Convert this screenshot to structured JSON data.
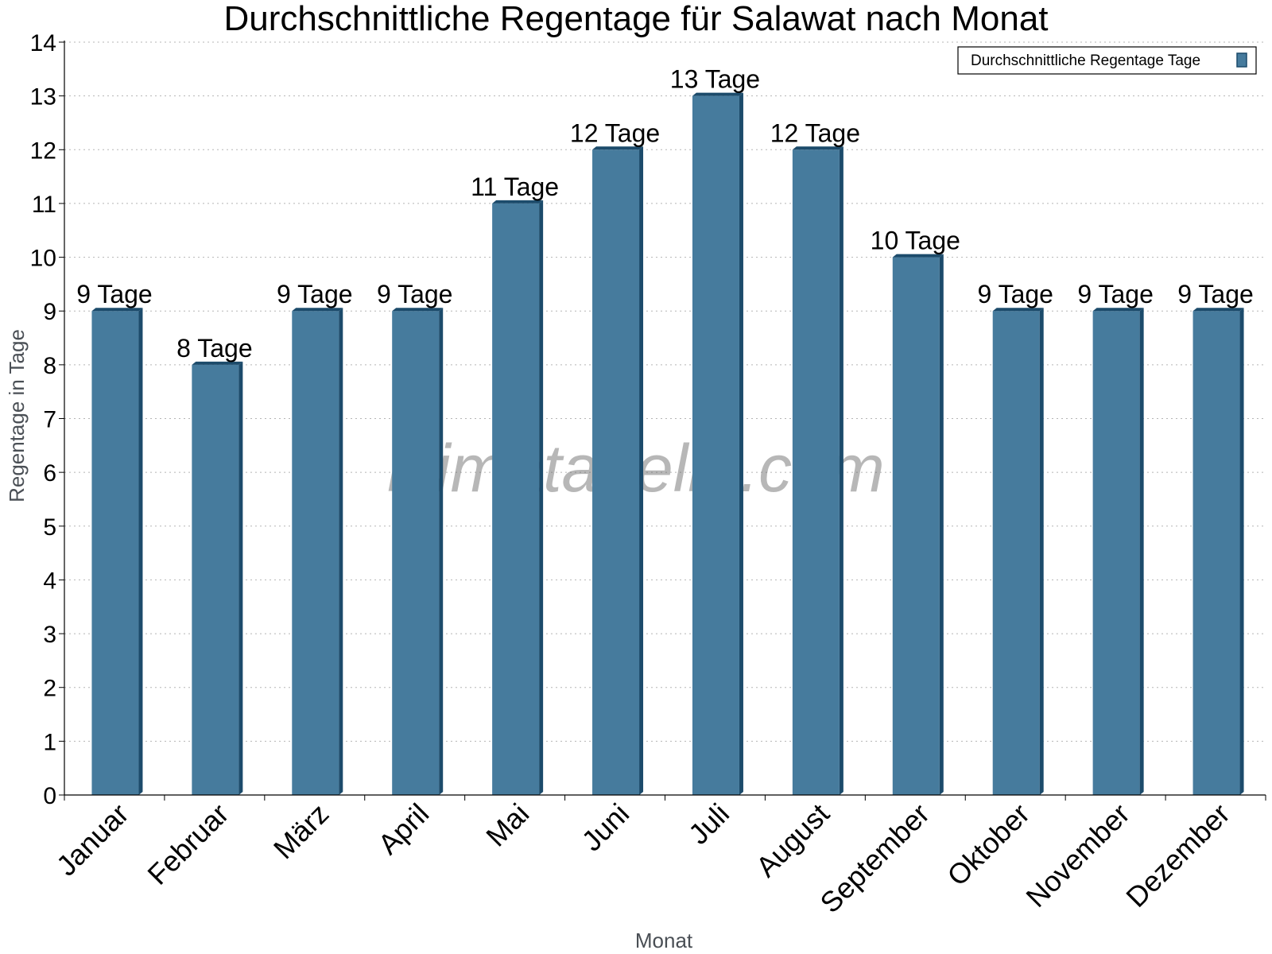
{
  "chart_data": {
    "type": "bar",
    "title": "Durchschnittliche Regentage für Salawat nach Monat",
    "xlabel": "Monat",
    "ylabel": "Regentage in Tage",
    "categories": [
      "Januar",
      "Februar",
      "März",
      "April",
      "Mai",
      "Juni",
      "Juli",
      "August",
      "September",
      "Oktober",
      "November",
      "Dezember"
    ],
    "series": [
      {
        "name": "Durchschnittliche Regentage Tage",
        "values": [
          9,
          8,
          9,
          9,
          11,
          12,
          13,
          12,
          10,
          9,
          9,
          9
        ],
        "labels": [
          "9 Tage",
          "8 Tage",
          "9 Tage",
          "9 Tage",
          "11 Tage",
          "12 Tage",
          "13 Tage",
          "12 Tage",
          "10 Tage",
          "9 Tage",
          "9 Tage",
          "9 Tage"
        ],
        "color": "#467b9d",
        "side_color": "#1c4b6b"
      }
    ],
    "ylim": [
      0,
      14
    ],
    "yticks": [
      0,
      1,
      2,
      3,
      4,
      5,
      6,
      7,
      8,
      9,
      10,
      11,
      12,
      13,
      14
    ],
    "grid": true,
    "legend_position": "top-right",
    "watermark": "klimatabelle.com"
  }
}
